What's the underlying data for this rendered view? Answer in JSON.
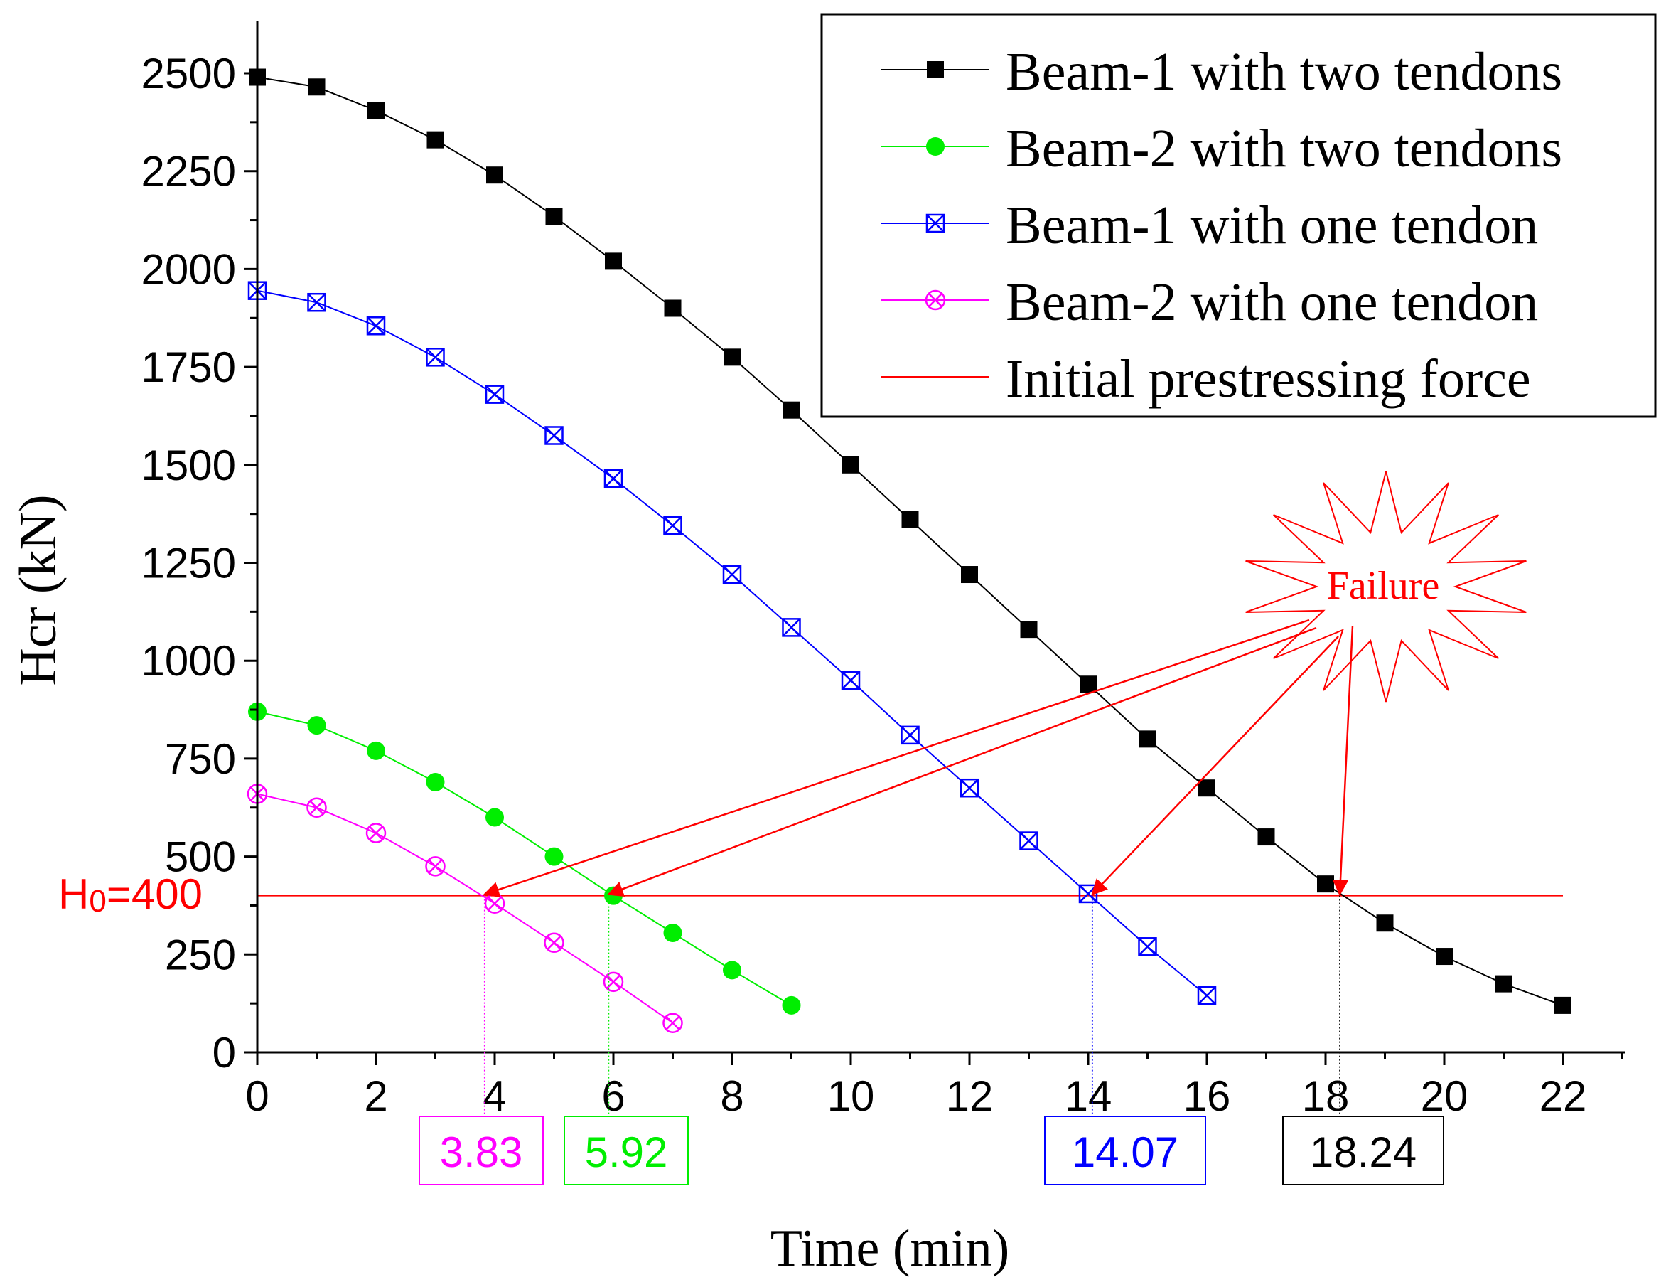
{
  "chart_data": {
    "type": "line",
    "xlabel": "Time (min)",
    "ylabel": "Hcr (kN)",
    "xlim": [
      0,
      23
    ],
    "ylim": [
      0,
      2600
    ],
    "x_ticks": [
      0,
      2,
      4,
      6,
      8,
      10,
      12,
      14,
      16,
      18,
      20,
      22
    ],
    "y_ticks": [
      0,
      250,
      500,
      750,
      1000,
      1250,
      1500,
      1750,
      2000,
      2250,
      2500
    ],
    "series": [
      {
        "name": "Beam-1 with two tendons",
        "color": "#000000",
        "marker": "filled-square",
        "x": [
          0,
          1,
          2,
          3,
          4,
          5,
          6,
          7,
          8,
          9,
          10,
          11,
          12,
          13,
          14,
          15,
          16,
          17,
          18,
          19,
          20,
          21,
          22
        ],
        "values": [
          2490,
          2465,
          2405,
          2330,
          2240,
          2135,
          2020,
          1900,
          1775,
          1640,
          1500,
          1360,
          1220,
          1080,
          940,
          800,
          675,
          550,
          430,
          330,
          245,
          175,
          120
        ]
      },
      {
        "name": "Beam-2 with two tendons",
        "color": "#00ee00",
        "marker": "filled-circle",
        "x": [
          0,
          1,
          2,
          3,
          4,
          5,
          6,
          7,
          8,
          9
        ],
        "values": [
          870,
          835,
          770,
          690,
          600,
          500,
          400,
          305,
          210,
          120
        ]
      },
      {
        "name": "Beam-1 with one tendon",
        "color": "#0000ff",
        "marker": "crossed-square",
        "x": [
          0,
          1,
          2,
          3,
          4,
          5,
          6,
          7,
          8,
          9,
          10,
          11,
          12,
          13,
          14,
          15,
          16
        ],
        "values": [
          1945,
          1915,
          1855,
          1775,
          1680,
          1575,
          1465,
          1345,
          1220,
          1085,
          950,
          810,
          675,
          540,
          405,
          270,
          145
        ]
      },
      {
        "name": "Beam-2 with one tendon",
        "color": "#ff00ff",
        "marker": "crossed-circle",
        "x": [
          0,
          1,
          2,
          3,
          4,
          5,
          6,
          7
        ],
        "values": [
          660,
          625,
          560,
          475,
          380,
          280,
          180,
          75
        ]
      }
    ],
    "reference_line": {
      "name": "Initial prestressing force",
      "color": "#ff0000",
      "y": 400,
      "x_range": [
        0,
        22
      ],
      "label_main": "H",
      "label_sub": "0",
      "label_rest": "=400"
    },
    "failure_annotation": {
      "text": "Failure",
      "color": "#ff0000",
      "points": [
        {
          "x": 3.83,
          "label": "3.83",
          "color": "#ff00ff"
        },
        {
          "x": 5.92,
          "label": "5.92",
          "color": "#00ee00"
        },
        {
          "x": 14.07,
          "label": "14.07",
          "color": "#0000ff"
        },
        {
          "x": 18.24,
          "label": "18.24",
          "color": "#000000"
        }
      ]
    },
    "legend_position": "top-right"
  }
}
